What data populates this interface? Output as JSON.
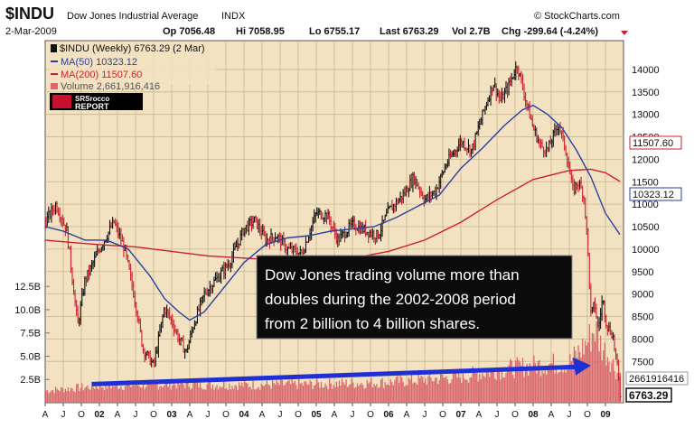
{
  "header": {
    "symbol": "$INDU",
    "name": "Dow Jones Industrial Average",
    "exchange": "INDX",
    "source": "© StockCharts.com",
    "date": "2-Mar-2009",
    "open": "Op 7056.48",
    "high": "Hi 7058.95",
    "low": "Lo 6755.17",
    "last": "Last 6763.29",
    "vol": "Vol 2.7B",
    "chg": "Chg -299.64 (-4.24%)"
  },
  "legend": {
    "main": "$INDU (Weekly) 6763.29 (2 Mar)",
    "ma50": "MA(50) 10323.12",
    "ma200": "MA(200) 11507.60",
    "volume": "Volume 2,661,916,416"
  },
  "logo": {
    "line1": "SRSrocco",
    "line2": "REPORT"
  },
  "annotation": {
    "lines": [
      "Dow Jones trading volume more than",
      "doubles during the 2002-2008 period",
      "from 2 billion to 4 billion shares."
    ]
  },
  "badges": {
    "ma200": "11507.60",
    "ma50": "10323.12",
    "volume": "2661916416",
    "price": "6763.29"
  },
  "colors": {
    "panel_bg": "#f2e2c2",
    "price_up": "#111111",
    "price_down": "#cc1f2e",
    "ma50": "#2b3f9e",
    "ma200": "#cc1f2e",
    "volume_bar": "#d9686e",
    "arrow": "#1f2fd6",
    "note_bg": "#0b0b0b"
  },
  "chart_data": {
    "type": "line",
    "title": "$INDU Dow Jones Industrial Average INDX",
    "interval": "weekly",
    "price_axis": {
      "ticks": [
        7500,
        8000,
        8500,
        9000,
        9500,
        10000,
        10500,
        11000,
        11500,
        12000,
        12500,
        13000,
        13500,
        14000
      ],
      "range": [
        6500,
        14300
      ]
    },
    "volume_axis": {
      "ticks": [
        "2.5B",
        "5.0B",
        "7.5B",
        "10.0B",
        "12.5B"
      ],
      "values": [
        2.5,
        5.0,
        7.5,
        10.0,
        12.5
      ],
      "range": [
        0,
        15
      ]
    },
    "x_axis": {
      "range": [
        2001.25,
        2009.25
      ],
      "ticks": [
        {
          "x": 2001.25,
          "label": "A"
        },
        {
          "x": 2001.5,
          "label": "J"
        },
        {
          "x": 2001.75,
          "label": "O"
        },
        {
          "x": 2002.0,
          "label": "02",
          "year": true
        },
        {
          "x": 2002.25,
          "label": "A"
        },
        {
          "x": 2002.5,
          "label": "J"
        },
        {
          "x": 2002.75,
          "label": "O"
        },
        {
          "x": 2003.0,
          "label": "03",
          "year": true
        },
        {
          "x": 2003.25,
          "label": "A"
        },
        {
          "x": 2003.5,
          "label": "J"
        },
        {
          "x": 2003.75,
          "label": "O"
        },
        {
          "x": 2004.0,
          "label": "04",
          "year": true
        },
        {
          "x": 2004.25,
          "label": "A"
        },
        {
          "x": 2004.5,
          "label": "J"
        },
        {
          "x": 2004.75,
          "label": "O"
        },
        {
          "x": 2005.0,
          "label": "05",
          "year": true
        },
        {
          "x": 2005.25,
          "label": "A"
        },
        {
          "x": 2005.5,
          "label": "J"
        },
        {
          "x": 2005.75,
          "label": "O"
        },
        {
          "x": 2006.0,
          "label": "06",
          "year": true
        },
        {
          "x": 2006.25,
          "label": "A"
        },
        {
          "x": 2006.5,
          "label": "J"
        },
        {
          "x": 2006.75,
          "label": "O"
        },
        {
          "x": 2007.0,
          "label": "07",
          "year": true
        },
        {
          "x": 2007.25,
          "label": "A"
        },
        {
          "x": 2007.5,
          "label": "J"
        },
        {
          "x": 2007.75,
          "label": "O"
        },
        {
          "x": 2008.0,
          "label": "08",
          "year": true
        },
        {
          "x": 2008.25,
          "label": "A"
        },
        {
          "x": 2008.5,
          "label": "J"
        },
        {
          "x": 2008.75,
          "label": "O"
        },
        {
          "x": 2009.0,
          "label": "09",
          "year": true
        }
      ]
    },
    "series": [
      {
        "name": "$INDU (Weekly)",
        "points": [
          [
            2001.25,
            10600
          ],
          [
            2001.4,
            11000
          ],
          [
            2001.55,
            10400
          ],
          [
            2001.7,
            8300
          ],
          [
            2001.8,
            9300
          ],
          [
            2002.0,
            10000
          ],
          [
            2002.2,
            10600
          ],
          [
            2002.35,
            10000
          ],
          [
            2002.5,
            8800
          ],
          [
            2002.6,
            7800
          ],
          [
            2002.75,
            7400
          ],
          [
            2002.9,
            8700
          ],
          [
            2003.0,
            8400
          ],
          [
            2003.1,
            8000
          ],
          [
            2003.2,
            7700
          ],
          [
            2003.3,
            8300
          ],
          [
            2003.45,
            9000
          ],
          [
            2003.6,
            9300
          ],
          [
            2003.8,
            9700
          ],
          [
            2004.0,
            10450
          ],
          [
            2004.15,
            10650
          ],
          [
            2004.3,
            10200
          ],
          [
            2004.45,
            10300
          ],
          [
            2004.6,
            10000
          ],
          [
            2004.8,
            9900
          ],
          [
            2005.0,
            10800
          ],
          [
            2005.15,
            10750
          ],
          [
            2005.3,
            10200
          ],
          [
            2005.5,
            10550
          ],
          [
            2005.7,
            10400
          ],
          [
            2005.85,
            10300
          ],
          [
            2006.0,
            10850
          ],
          [
            2006.2,
            11200
          ],
          [
            2006.35,
            11600
          ],
          [
            2006.5,
            11100
          ],
          [
            2006.65,
            11300
          ],
          [
            2006.8,
            11900
          ],
          [
            2007.0,
            12400
          ],
          [
            2007.15,
            12200
          ],
          [
            2007.3,
            13000
          ],
          [
            2007.45,
            13700
          ],
          [
            2007.55,
            13300
          ],
          [
            2007.65,
            13600
          ],
          [
            2007.78,
            14100
          ],
          [
            2007.9,
            13300
          ],
          [
            2008.0,
            12700
          ],
          [
            2008.1,
            12300
          ],
          [
            2008.2,
            12200
          ],
          [
            2008.35,
            12800
          ],
          [
            2008.45,
            12200
          ],
          [
            2008.55,
            11300
          ],
          [
            2008.62,
            11500
          ],
          [
            2008.7,
            11200
          ],
          [
            2008.75,
            10200
          ],
          [
            2008.8,
            8500
          ],
          [
            2008.85,
            8800
          ],
          [
            2008.9,
            8200
          ],
          [
            2008.96,
            8900
          ],
          [
            2009.02,
            8300
          ],
          [
            2009.1,
            8100
          ],
          [
            2009.17,
            7300
          ],
          [
            2009.2,
            6763.29
          ]
        ]
      },
      {
        "name": "MA(50)",
        "points": [
          [
            2001.25,
            10500
          ],
          [
            2001.5,
            10400
          ],
          [
            2001.8,
            10200
          ],
          [
            2002.1,
            10200
          ],
          [
            2002.4,
            10000
          ],
          [
            2002.7,
            9400
          ],
          [
            2002.9,
            8900
          ],
          [
            2003.1,
            8600
          ],
          [
            2003.25,
            8420
          ],
          [
            2003.45,
            8600
          ],
          [
            2003.7,
            9100
          ],
          [
            2004.0,
            9700
          ],
          [
            2004.3,
            10100
          ],
          [
            2004.6,
            10250
          ],
          [
            2004.9,
            10300
          ],
          [
            2005.2,
            10400
          ],
          [
            2005.5,
            10450
          ],
          [
            2005.8,
            10500
          ],
          [
            2006.1,
            10700
          ],
          [
            2006.4,
            10950
          ],
          [
            2006.7,
            11200
          ],
          [
            2007.0,
            11800
          ],
          [
            2007.3,
            12250
          ],
          [
            2007.6,
            12750
          ],
          [
            2007.85,
            13100
          ],
          [
            2008.0,
            13200
          ],
          [
            2008.2,
            13000
          ],
          [
            2008.4,
            12700
          ],
          [
            2008.6,
            12200
          ],
          [
            2008.8,
            11600
          ],
          [
            2009.0,
            10800
          ],
          [
            2009.2,
            10323.12
          ]
        ]
      },
      {
        "name": "MA(200)",
        "points": [
          [
            2001.25,
            10200
          ],
          [
            2001.6,
            10150
          ],
          [
            2002.0,
            10100
          ],
          [
            2002.5,
            10050
          ],
          [
            2003.0,
            9950
          ],
          [
            2003.5,
            9850
          ],
          [
            2004.0,
            9800
          ],
          [
            2004.5,
            9750
          ],
          [
            2005.0,
            9750
          ],
          [
            2005.5,
            9800
          ],
          [
            2006.0,
            9950
          ],
          [
            2006.5,
            10200
          ],
          [
            2007.0,
            10600
          ],
          [
            2007.5,
            11100
          ],
          [
            2008.0,
            11550
          ],
          [
            2008.5,
            11750
          ],
          [
            2008.8,
            11780
          ],
          [
            2009.0,
            11700
          ],
          [
            2009.2,
            11507.6
          ]
        ]
      },
      {
        "name": "Volume",
        "unit": "billion shares",
        "points": [
          [
            2001.25,
            1.3
          ],
          [
            2002.0,
            1.8
          ],
          [
            2003.0,
            2.0
          ],
          [
            2004.0,
            1.9
          ],
          [
            2005.0,
            2.0
          ],
          [
            2006.0,
            2.2
          ],
          [
            2007.0,
            2.8
          ],
          [
            2007.5,
            3.5
          ],
          [
            2008.0,
            4.0
          ],
          [
            2008.5,
            4.3
          ],
          [
            2008.75,
            6.5
          ],
          [
            2008.85,
            8.0
          ],
          [
            2008.95,
            6.0
          ],
          [
            2009.05,
            5.0
          ],
          [
            2009.2,
            2.66
          ]
        ]
      }
    ],
    "arrow": {
      "from": [
        2001.9,
        2.0
      ],
      "to": [
        2008.8,
        4.0
      ]
    }
  }
}
